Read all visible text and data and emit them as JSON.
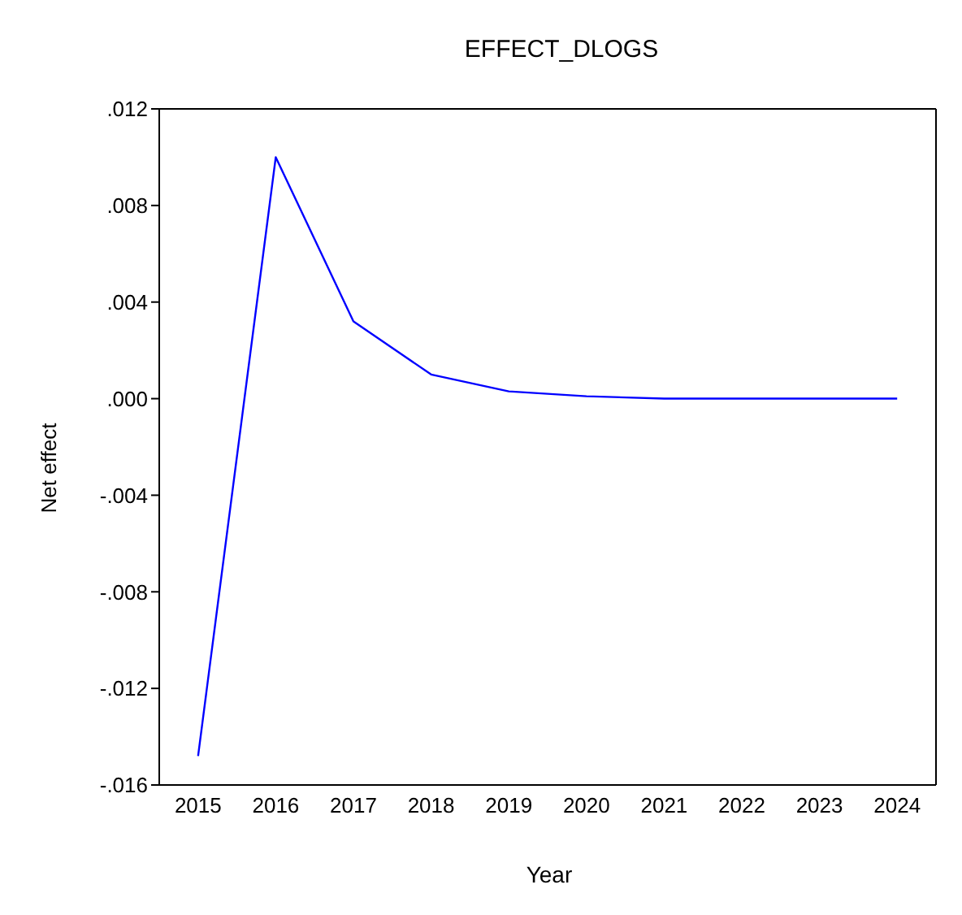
{
  "chart_data": {
    "type": "line",
    "title": "EFFECT_DLOGS",
    "xlabel": "Year",
    "ylabel": "Net effect",
    "categories": [
      "2015",
      "2016",
      "2017",
      "2018",
      "2019",
      "2020",
      "2021",
      "2022",
      "2023",
      "2024"
    ],
    "series": [
      {
        "color": "#0000ff",
        "values": [
          -0.0148,
          0.01,
          0.0032,
          0.001,
          0.0003,
          0.0001,
          0.0,
          0.0,
          0.0,
          0.0
        ]
      }
    ],
    "ylim": [
      -0.016,
      0.012
    ],
    "yticks": [
      {
        "value": -0.016,
        "label": "-.016"
      },
      {
        "value": -0.012,
        "label": "-.012"
      },
      {
        "value": -0.008,
        "label": "-.008"
      },
      {
        "value": -0.004,
        "label": "-.004"
      },
      {
        "value": 0,
        "label": ".000"
      },
      {
        "value": 0.004,
        "label": ".004"
      },
      {
        "value": 0.008,
        "label": ".008"
      },
      {
        "value": 0.012,
        "label": ".012"
      }
    ],
    "grid": false,
    "legend": false,
    "marker": "none",
    "line_style": "solid"
  }
}
